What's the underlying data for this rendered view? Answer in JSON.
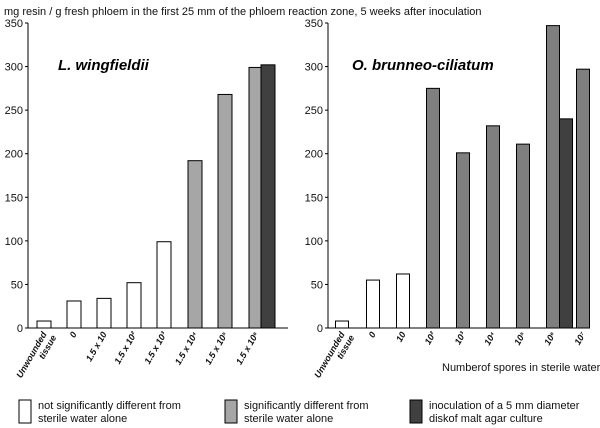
{
  "title": "mg resin / g fresh phloem in the first 25 mm of the phloem reaction zone, 5 weeks after inoculation",
  "colors": {
    "white": "#ffffff",
    "light": "#a6a6a6",
    "medium": "#7f7f7f",
    "dark": "#404040",
    "stroke": "#000000"
  },
  "legend": [
    {
      "key": "white",
      "line1": "not significantly different from",
      "line2": "sterile water alone"
    },
    {
      "key": "light",
      "line1": "significantly different from",
      "line2": "sterile water alone"
    },
    {
      "key": "dark",
      "line1": "inoculation of a 5 mm diameter",
      "line2": "diskof malt agar culture"
    }
  ],
  "chart_data": [
    {
      "type": "bar",
      "title": "L. wingfieldii",
      "xlabel": "",
      "ylabel": "",
      "ylim": [
        0,
        350
      ],
      "yticks": [
        0,
        50,
        100,
        150,
        200,
        250,
        300,
        350
      ],
      "categories": [
        "Unwounded tissue",
        "0",
        "1.5 x 10",
        "1.5 x 10²",
        "1.5 x 10³",
        "1.5 x 10⁴",
        "1.5 x 10⁵",
        "1.5 x 10⁶",
        ""
      ],
      "values": [
        8,
        31,
        34,
        52,
        99,
        192,
        268,
        299,
        302
      ],
      "bar_fill": [
        "white",
        "white",
        "white",
        "white",
        "white",
        "light",
        "light",
        "light",
        "dark"
      ]
    },
    {
      "type": "bar",
      "title": "O. brunneo-ciliatum",
      "xlabel": "Numberof spores in sterile water",
      "ylabel": "",
      "ylim": [
        0,
        350
      ],
      "yticks": [
        0,
        50,
        100,
        150,
        200,
        250,
        300,
        350
      ],
      "categories": [
        "Unwounded tissue",
        "0",
        "10",
        "10²",
        "10³",
        "10⁴",
        "10⁵",
        "10⁶",
        "",
        "10⁷"
      ],
      "values": [
        8,
        55,
        62,
        275,
        201,
        232,
        211,
        347,
        240,
        297
      ],
      "bar_fill": [
        "white",
        "white",
        "white",
        "medium",
        "medium",
        "medium",
        "medium",
        "medium",
        "dark",
        "medium"
      ]
    }
  ]
}
